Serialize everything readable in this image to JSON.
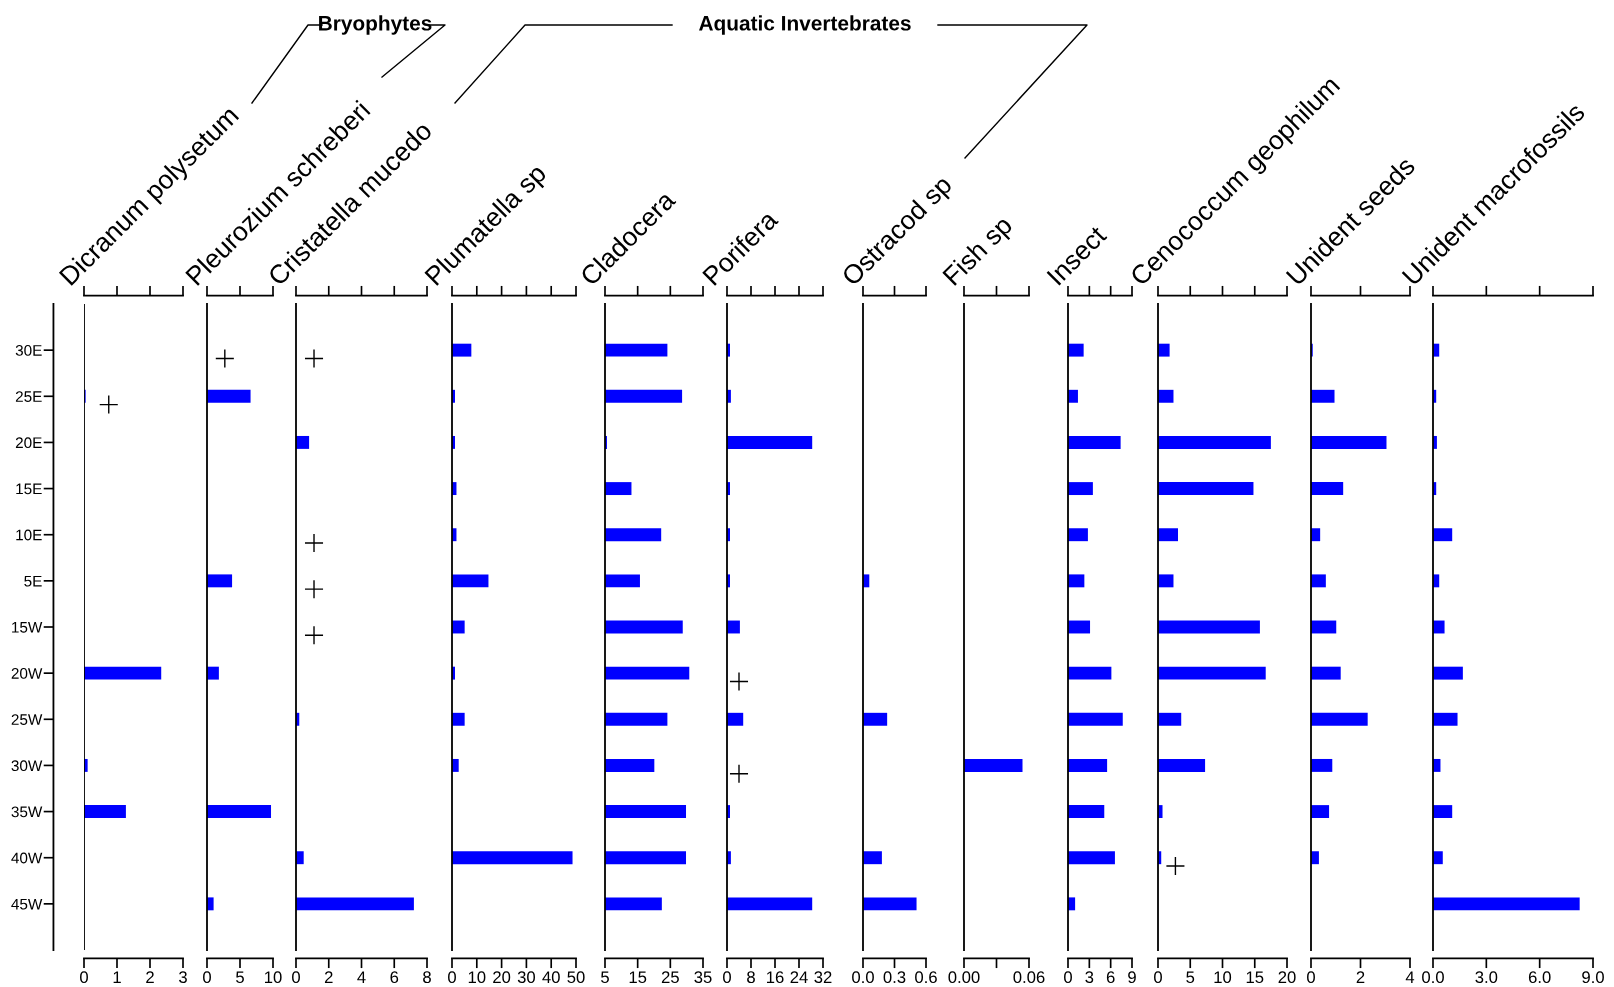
{
  "chart_data": [
    {
      "type": "bar",
      "orientation": "horizontal",
      "title": "Dicranum polysetum",
      "annotations": [
        "Bryophytes"
      ],
      "categories": [
        "30E",
        "25E",
        "20E",
        "15E",
        "10E",
        "5E",
        "15W",
        "20W",
        "25W",
        "30W",
        "35W",
        "40W",
        "45W"
      ],
      "series": [
        {
          "color": "#0000ff",
          "values": [
            null,
            0.05,
            null,
            null,
            null,
            null,
            null,
            2.34,
            null,
            0.11,
            1.27,
            null,
            null
          ]
        },
        {
          "type": "scatter",
          "marker": "cross",
          "color": "#000000",
          "x": [
            "25E"
          ],
          "values": [
            0.75
          ]
        }
      ],
      "xlim": [
        0,
        3
      ],
      "xticks": [
        0,
        1,
        2,
        3
      ]
    },
    {
      "type": "bar",
      "orientation": "horizontal",
      "title": "Pleurozium schreberi",
      "tick_labels": "x",
      "categories": [
        "30E",
        "25E",
        "20E",
        "15E",
        "10E",
        "5E",
        "15W",
        "20W",
        "25W",
        "30W",
        "35W",
        "40W",
        "45W"
      ],
      "series": [
        {
          "color": "#0000ff",
          "values": [
            null,
            6.6,
            null,
            null,
            null,
            3.8,
            null,
            1.8,
            null,
            null,
            9.7,
            null,
            1.0
          ]
        },
        {
          "type": "scatter",
          "marker": "cross",
          "color": "#000000",
          "x": [
            "30E"
          ],
          "values": [
            2.7
          ]
        }
      ],
      "xlim": [
        0,
        10
      ],
      "xticks": [
        0,
        5,
        10
      ]
    },
    {
      "type": "bar",
      "orientation": "horizontal",
      "title": "Cristatella mucedo",
      "annotations": [
        "Aquatic Invertebrates"
      ],
      "tick_labels": "x",
      "categories": [
        "30E",
        "25E",
        "20E",
        "15E",
        "10E",
        "5E",
        "15W",
        "20W",
        "25W",
        "30W",
        "35W",
        "40W",
        "45W"
      ],
      "series": [
        {
          "color": "#0000ff",
          "values": [
            null,
            null,
            0.8,
            null,
            null,
            null,
            null,
            null,
            0.2,
            null,
            null,
            0.47,
            7.2
          ]
        },
        {
          "type": "scatter",
          "marker": "cross",
          "color": "#000000",
          "x": [
            "30E",
            "10E",
            "5E",
            "15W"
          ],
          "values": [
            1.1,
            1.1,
            1.1,
            1.1
          ]
        }
      ],
      "xlim": [
        0,
        8
      ],
      "xticks": [
        0,
        2,
        4,
        6,
        8
      ]
    },
    {
      "type": "bar",
      "orientation": "horizontal",
      "title": "Plumatella sp",
      "tick_labels": "x",
      "categories": [
        "30E",
        "25E",
        "20E",
        "15E",
        "10E",
        "5E",
        "15W",
        "20W",
        "25W",
        "30W",
        "35W",
        "40W",
        "45W"
      ],
      "series": [
        {
          "color": "#0000ff",
          "values": [
            7.8,
            1.2,
            1.2,
            1.8,
            1.8,
            14.7,
            5.1,
            1.2,
            5.1,
            2.7,
            null,
            48.6,
            null
          ]
        }
      ],
      "xlim": [
        0,
        50
      ],
      "xticks": [
        0,
        10,
        20,
        30,
        40,
        50
      ]
    },
    {
      "type": "bar",
      "orientation": "horizontal",
      "title": "Cladocera",
      "tick_labels": "x",
      "categories": [
        "30E",
        "25E",
        "20E",
        "15E",
        "10E",
        "5E",
        "15W",
        "20W",
        "25W",
        "30W",
        "35W",
        "40W",
        "45W"
      ],
      "series": [
        {
          "color": "#0000ff",
          "values": [
            24.1,
            28.6,
            5.6,
            13.1,
            22.2,
            15.7,
            28.8,
            30.8,
            24.1,
            20.1,
            29.8,
            29.8,
            22.4
          ]
        }
      ],
      "xlim": [
        5,
        35
      ],
      "xticks": [
        5,
        15,
        25,
        35
      ]
    },
    {
      "type": "bar",
      "orientation": "horizontal",
      "title": "Porifera",
      "tick_labels": "x",
      "categories": [
        "30E",
        "25E",
        "20E",
        "15E",
        "10E",
        "5E",
        "15W",
        "20W",
        "25W",
        "30W",
        "35W",
        "40W",
        "45W"
      ],
      "series": [
        {
          "color": "#0000ff",
          "values": [
            1.0,
            1.3,
            28.4,
            1.0,
            1.0,
            1.0,
            4.3,
            null,
            5.4,
            null,
            1.0,
            1.3,
            28.4
          ]
        },
        {
          "type": "scatter",
          "marker": "cross",
          "color": "#000000",
          "x": [
            "20W",
            "30W"
          ],
          "values": [
            4.0,
            4.0
          ]
        }
      ],
      "xlim": [
        0,
        32
      ],
      "xticks": [
        0,
        8,
        16,
        24,
        32
      ]
    },
    {
      "type": "bar",
      "orientation": "horizontal",
      "title": "Ostracod sp",
      "tick_labels": "x",
      "categories": [
        "30E",
        "25E",
        "20E",
        "15E",
        "10E",
        "5E",
        "15W",
        "20W",
        "25W",
        "30W",
        "35W",
        "40W",
        "45W"
      ],
      "series": [
        {
          "color": "#0000ff",
          "values": [
            null,
            null,
            null,
            null,
            null,
            0.06,
            null,
            null,
            0.23,
            null,
            null,
            0.18,
            0.51
          ]
        }
      ],
      "xlim": [
        0,
        0.6
      ],
      "xticks": [
        {
          "value": 0,
          "label": "0.0"
        },
        0.3,
        0.6
      ]
    },
    {
      "type": "bar",
      "orientation": "horizontal",
      "title": "Fish sp",
      "tick_labels": "x",
      "categories": [
        "30E",
        "25E",
        "20E",
        "15E",
        "10E",
        "5E",
        "15W",
        "20W",
        "25W",
        "30W",
        "35W",
        "40W",
        "45W"
      ],
      "series": [
        {
          "color": "#0000ff",
          "values": [
            null,
            null,
            null,
            null,
            null,
            null,
            null,
            null,
            null,
            0.054,
            null,
            null,
            null
          ]
        }
      ],
      "xlim": [
        0,
        0.06
      ],
      "xticks": [
        {
          "value": 0,
          "label": "0.00"
        },
        {
          "value": 0.03,
          "label": null
        },
        0.06
      ]
    },
    {
      "type": "bar",
      "orientation": "horizontal",
      "title": "Insect",
      "tick_labels": "x",
      "categories": [
        "30E",
        "25E",
        "20E",
        "15E",
        "10E",
        "5E",
        "15W",
        "20W",
        "25W",
        "30W",
        "35W",
        "40W",
        "45W"
      ],
      "series": [
        {
          "color": "#0000ff",
          "values": [
            2.2,
            1.4,
            7.4,
            3.5,
            2.8,
            2.3,
            3.1,
            6.1,
            7.7,
            5.5,
            5.1,
            6.6,
            1.0
          ]
        }
      ],
      "xlim": [
        0,
        9
      ],
      "xticks": [
        0,
        3,
        6,
        9
      ]
    },
    {
      "type": "bar",
      "orientation": "horizontal",
      "title": "Cenococcum geophilum",
      "tick_labels": "x",
      "categories": [
        "30E",
        "25E",
        "20E",
        "15E",
        "10E",
        "5E",
        "15W",
        "20W",
        "25W",
        "30W",
        "35W",
        "40W",
        "45W"
      ],
      "series": [
        {
          "color": "#0000ff",
          "values": [
            1.8,
            2.4,
            17.5,
            14.8,
            3.1,
            2.4,
            15.8,
            16.7,
            3.6,
            7.3,
            0.7,
            0.5,
            null
          ]
        },
        {
          "type": "scatter",
          "marker": "cross",
          "color": "#000000",
          "x": [
            "40W"
          ],
          "values": [
            2.7
          ]
        }
      ],
      "xlim": [
        0,
        20
      ],
      "xticks": [
        0,
        5,
        10,
        15,
        20
      ]
    },
    {
      "type": "bar",
      "orientation": "horizontal",
      "title": "Unident seeds",
      "tick_labels": "x",
      "categories": [
        "30E",
        "25E",
        "20E",
        "15E",
        "10E",
        "5E",
        "15W",
        "20W",
        "25W",
        "30W",
        "35W",
        "40W",
        "45W"
      ],
      "series": [
        {
          "color": "#0000ff",
          "values": [
            0.07,
            0.95,
            3.05,
            1.3,
            0.37,
            0.6,
            1.02,
            1.2,
            2.29,
            0.86,
            0.73,
            0.32,
            null
          ]
        }
      ],
      "xlim": [
        0,
        4
      ],
      "xticks": [
        0,
        2,
        4
      ]
    },
    {
      "type": "bar",
      "orientation": "horizontal",
      "title": "Unident macrofossils",
      "tick_labels": "x",
      "categories": [
        "30E",
        "25E",
        "20E",
        "15E",
        "10E",
        "5E",
        "15W",
        "20W",
        "25W",
        "30W",
        "35W",
        "40W",
        "45W"
      ],
      "series": [
        {
          "color": "#0000ff",
          "values": [
            0.35,
            0.18,
            0.22,
            0.18,
            1.08,
            0.35,
            0.65,
            1.68,
            1.38,
            0.42,
            1.08,
            0.55,
            8.25
          ]
        }
      ],
      "xlim": [
        0,
        9
      ],
      "xticks": [
        {
          "value": 0,
          "label": "0.0"
        },
        {
          "value": 3,
          "label": "3.0"
        },
        {
          "value": 6,
          "label": "6.0"
        },
        {
          "value": 9,
          "label": "9.0"
        }
      ]
    }
  ]
}
